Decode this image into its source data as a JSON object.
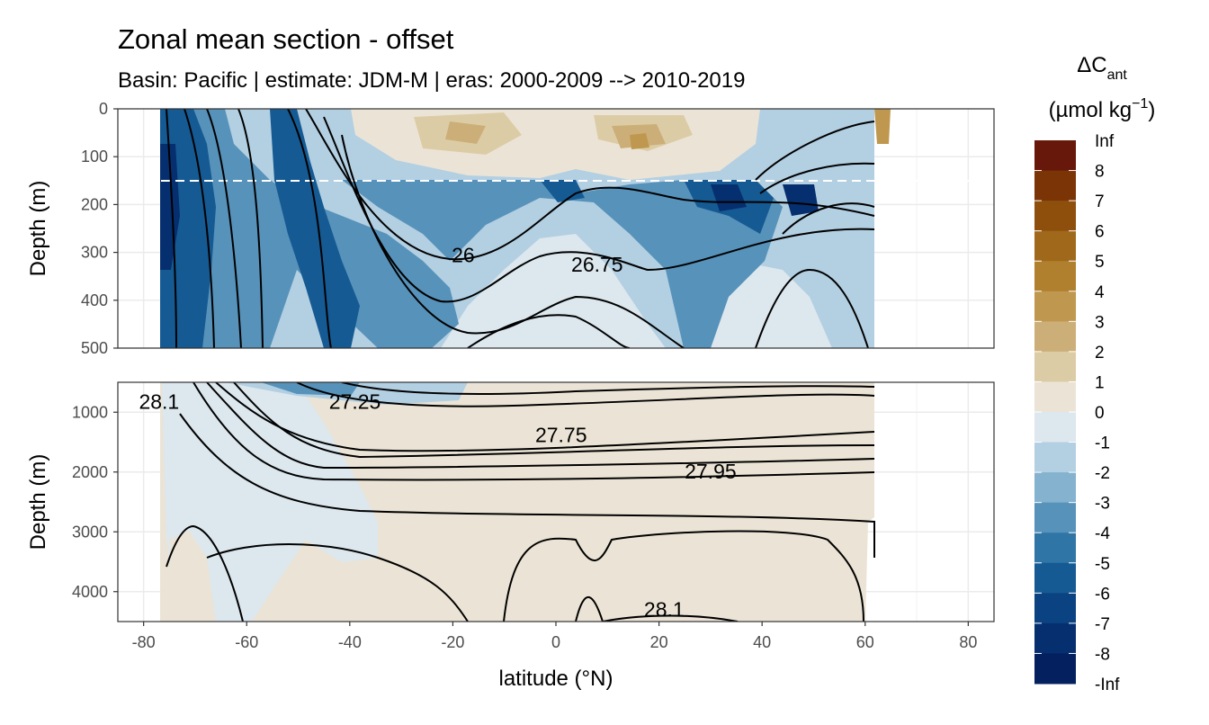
{
  "title": "Zonal mean section - offset",
  "subtitle": "Basin: Pacific | estimate: JDM-M | eras: 2000-2009 --> 2010-2019",
  "chart_data": {
    "type": "contour",
    "xlabel": "latitude (°N)",
    "ylabel": "Depth (m)",
    "xlim": [
      -85,
      85
    ],
    "x_ticks": [
      -80,
      -60,
      -40,
      -20,
      0,
      20,
      40,
      60,
      80
    ],
    "panels": [
      {
        "name": "upper",
        "ylim": [
          0,
          500
        ],
        "y_ticks": [
          0,
          100,
          200,
          300,
          400,
          500
        ],
        "dashed_depth": 150
      },
      {
        "name": "lower",
        "ylim": [
          500,
          4500
        ],
        "y_ticks": [
          1000,
          2000,
          3000,
          4000
        ]
      }
    ],
    "contour_labels": [
      {
        "panel": 0,
        "label": "26",
        "lat": -18,
        "depth": 305
      },
      {
        "panel": 0,
        "label": "26.75",
        "lat": 8,
        "depth": 325
      },
      {
        "panel": 1,
        "label": "28.1",
        "lat": -77,
        "depth": 820
      },
      {
        "panel": 1,
        "label": "27.25",
        "lat": -39,
        "depth": 820
      },
      {
        "panel": 1,
        "label": "27.75",
        "lat": 1,
        "depth": 1380
      },
      {
        "panel": 1,
        "label": "27.95",
        "lat": 30,
        "depth": 1990
      },
      {
        "panel": 1,
        "label": "28.1",
        "lat": 21,
        "depth": 4300
      }
    ],
    "legend": {
      "title": "ΔC",
      "title_sub": "ant",
      "unit_base": "(µmol kg",
      "unit_exp": "−1",
      "unit_close": ")",
      "levels": [
        "Inf",
        "8",
        "7",
        "6",
        "5",
        "4",
        "3",
        "2",
        "1",
        "0",
        "-1",
        "-2",
        "-3",
        "-4",
        "-5",
        "-6",
        "-7",
        "-8",
        "-Inf"
      ],
      "colors": [
        "#67180a",
        "#7b3406",
        "#8e4f0c",
        "#a0681a",
        "#b0802f",
        "#bf974e",
        "#ccaf78",
        "#dccca6",
        "#ebe4d6",
        "#dce7ee",
        "#b3cfe2",
        "#84b2cf",
        "#5792ba",
        "#2f75a5",
        "#155a93",
        "#0b4282",
        "#062f6f",
        "#05205f"
      ]
    }
  }
}
